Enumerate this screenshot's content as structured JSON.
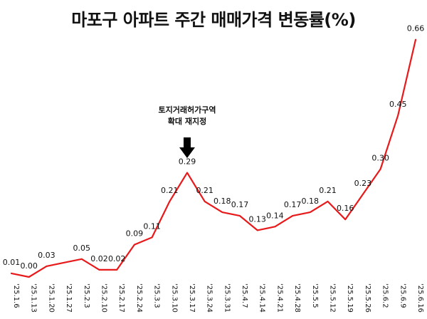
{
  "chart_data": {
    "type": "line",
    "title": "마포구 아파트 주간 매매가격 변동률(%)",
    "categories": [
      "'25.1.6",
      "'25.1.13",
      "'25.1.20",
      "'25.1.27",
      "'25.2.3",
      "'25.2.10",
      "'25.2.17",
      "'25.2.24",
      "'25.3.3",
      "'25.3.10",
      "'25.3.17",
      "'25.3.24",
      "'25.3.31",
      "'25.4.7",
      "'25.4.14",
      "'25.4.21",
      "'25.4.28",
      "'25.5.5",
      "'25.5.12",
      "'25.5.19",
      "'25.5.26",
      "'25.6.2",
      "'25.6.9",
      "'25.6.16"
    ],
    "values": [
      0.01,
      0.0,
      0.03,
      null,
      0.05,
      0.02,
      0.02,
      0.09,
      0.11,
      0.21,
      0.29,
      0.21,
      0.18,
      0.17,
      0.13,
      0.14,
      0.17,
      0.18,
      0.21,
      0.16,
      0.23,
      0.3,
      0.45,
      0.66
    ],
    "series": [
      {
        "color": "#e8191a"
      }
    ],
    "xlabel": "",
    "ylabel": "",
    "grid": false,
    "annotations": [
      {
        "category": "'25.3.17",
        "lines": [
          "토지거래허가구역",
          "확대 재지정"
        ],
        "marker": "down-arrow"
      }
    ]
  }
}
